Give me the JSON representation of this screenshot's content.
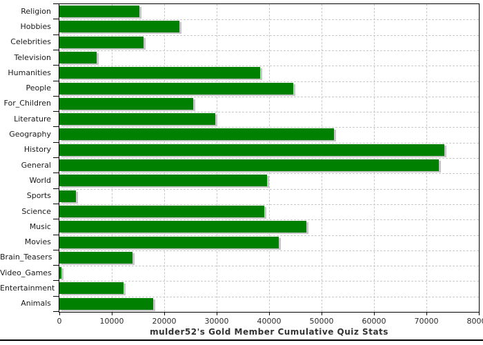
{
  "title": "mulder52's Gold Member Cumulative Quiz Stats",
  "colors": {
    "bar": "#008000",
    "bar_shadow": "#c6c6c6",
    "grid": "#c9c9c9",
    "axis": "#000000",
    "label_text": "#1a1a1a",
    "title_text": "#333333"
  },
  "chart_data": {
    "type": "bar",
    "orientation": "horizontal",
    "title": "mulder52's Gold Member Cumulative Quiz Stats",
    "xlabel": "",
    "ylabel": "",
    "xlim": [
      0,
      80000
    ],
    "x_ticks": [
      0,
      10000,
      20000,
      30000,
      40000,
      50000,
      60000,
      70000,
      80000
    ],
    "grid": true,
    "legend": false,
    "categories": [
      "Religion",
      "Hobbies",
      "Celebrities",
      "Television",
      "Humanities",
      "People",
      "For_Children",
      "Literature",
      "Geography",
      "History",
      "General",
      "World",
      "Sports",
      "Science",
      "Music",
      "Movies",
      "Brain_Teasers",
      "Video_Games",
      "Entertainment",
      "Animals"
    ],
    "values": [
      15300,
      22900,
      16000,
      7100,
      38300,
      44600,
      25500,
      29800,
      52400,
      73400,
      72400,
      39600,
      3200,
      39100,
      47100,
      41800,
      13900,
      400,
      12200,
      17900
    ]
  }
}
